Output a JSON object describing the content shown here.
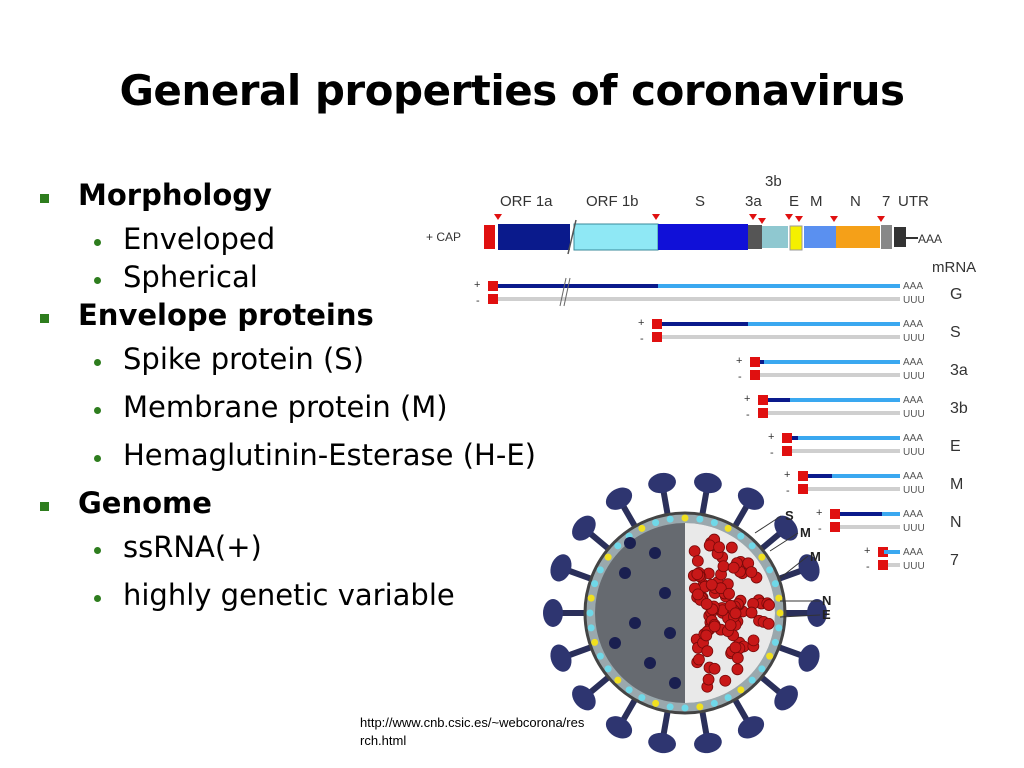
{
  "slide": {
    "title": "General properties of coronavirus",
    "source_url_line1": "http://www.cnb.csic.es/~webcorona/res",
    "source_url_line2": "rch.html"
  },
  "bullets": [
    {
      "heading": "Morphology",
      "items": [
        "Enveloped",
        "Spherical"
      ]
    },
    {
      "heading": "Envelope proteins",
      "items": [
        "Spike protein (S)",
        "Membrane protein (M)",
        "Hemaglutinin-Esterase (H-E)"
      ]
    },
    {
      "heading": "Genome",
      "items": [
        "ssRNA(+)",
        "highly genetic variable"
      ]
    }
  ],
  "genome_figure": {
    "gene_labels": [
      "ORF 1a",
      "ORF 1b",
      "S",
      "3a",
      "3b",
      "E",
      "M",
      "N",
      "7",
      "UTR"
    ],
    "cap_label": "+ CAP",
    "polyA_label": "AAA",
    "mrna_header": "mRNA",
    "mrna_names": [
      "G",
      "S",
      "3a",
      "3b",
      "E",
      "M",
      "N",
      "7"
    ],
    "plus_sign": "+",
    "minus_sign": "-",
    "tail_plus": "AAA",
    "tail_minus": "UUU"
  },
  "virion_figure": {
    "labels": [
      "S",
      "M",
      "M",
      "N",
      "E"
    ]
  },
  "colors": {
    "bullet_green": "#2e7d1e",
    "orf1a": "#0a1a8c",
    "orf1b": "#8fe8f5",
    "s_gene": "#1010d8",
    "gene_3a": "#8fc8d0",
    "e_gene": "#f5f000",
    "m_gene": "#5a90f0",
    "n_gene": "#f5a018",
    "cap_red": "#e01010",
    "mrna_dark": "#0a1a8c",
    "mrna_light": "#3aa8f0"
  }
}
